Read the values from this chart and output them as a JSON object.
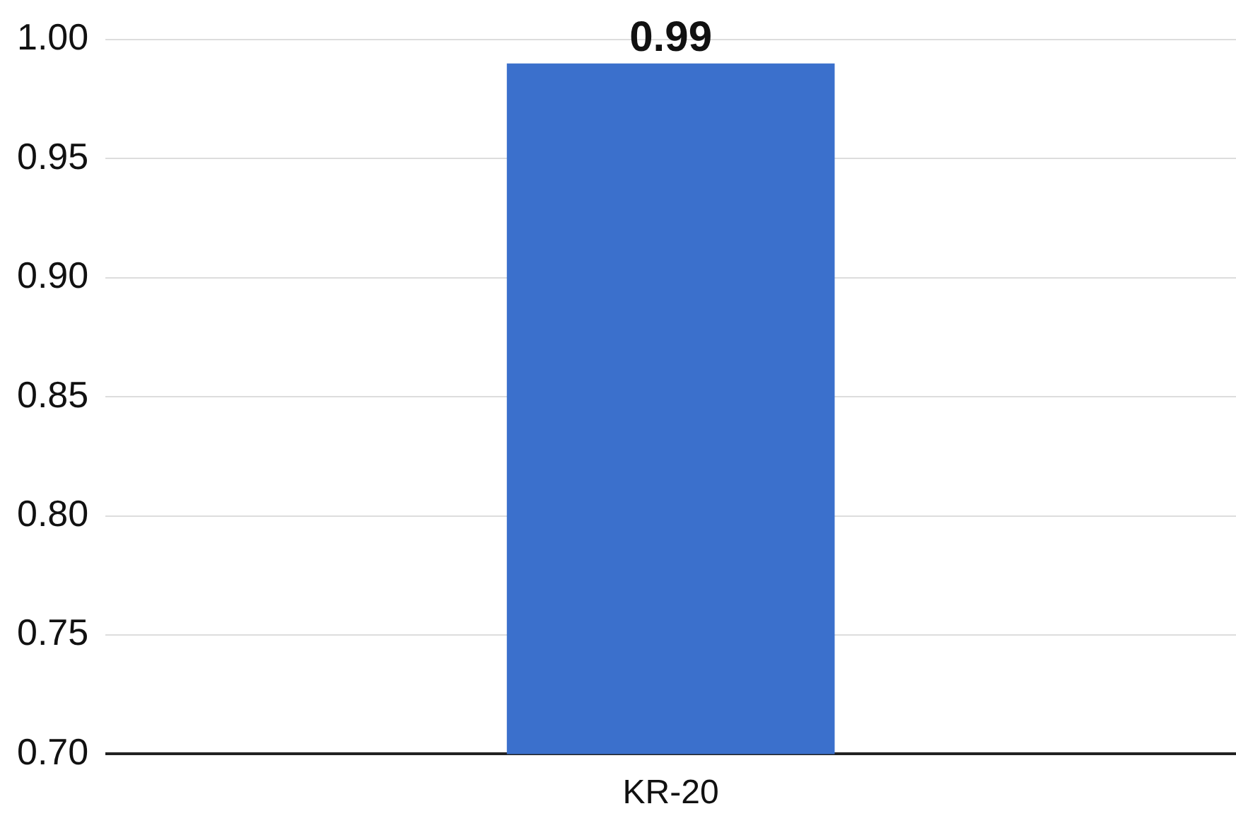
{
  "chart_data": {
    "type": "bar",
    "categories": [
      "KR-20"
    ],
    "values": [
      0.99
    ],
    "color": "#3b70cc",
    "ylim": [
      0.7,
      1.0
    ],
    "yticks": [
      {
        "value": 0.7,
        "label": "0.70"
      },
      {
        "value": 0.75,
        "label": "0.75"
      },
      {
        "value": 0.8,
        "label": "0.80"
      },
      {
        "value": 0.85,
        "label": "0.85"
      },
      {
        "value": 0.9,
        "label": "0.90"
      },
      {
        "value": 0.95,
        "label": "0.95"
      },
      {
        "value": 1.0,
        "label": "1.00"
      }
    ],
    "grid": "y",
    "legend": false,
    "data_labels": true
  }
}
